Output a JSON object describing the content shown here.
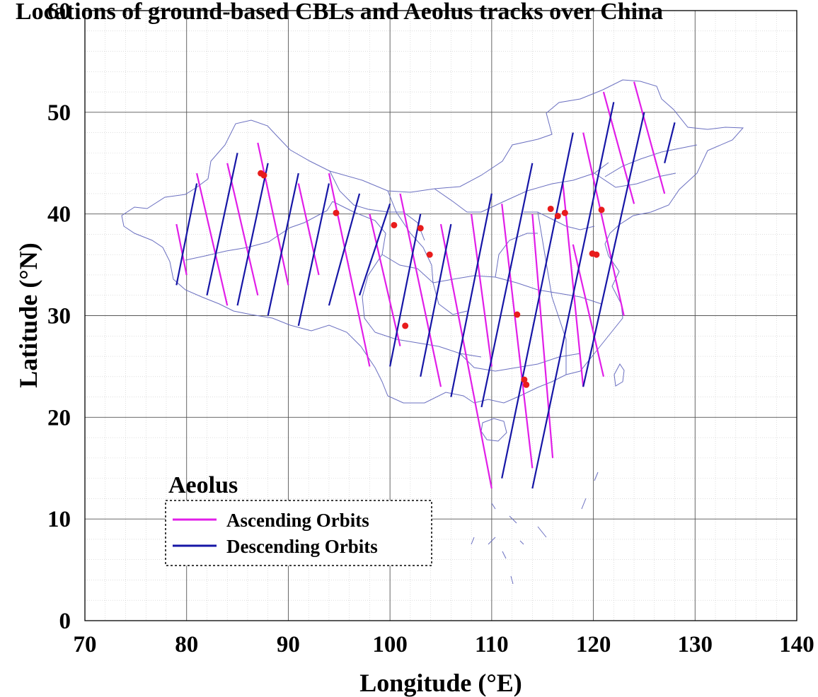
{
  "chart_data": {
    "type": "map",
    "title": "Locations of ground-based CBLs and Aeolus tracks over China",
    "xlabel": "Longitude (°E)",
    "ylabel": "Latitude (°N)",
    "xlim": [
      70,
      140
    ],
    "ylim": [
      0,
      60
    ],
    "x_ticks": [
      "70",
      "80",
      "90",
      "100",
      "110",
      "120",
      "130",
      "140"
    ],
    "y_ticks": [
      "0",
      "10",
      "20",
      "30",
      "40",
      "50",
      "60"
    ],
    "grid": true,
    "legend": {
      "title": "Aeolus",
      "placement": "bottom-left",
      "entries": [
        {
          "label": "Ascending Orbits",
          "color": "#e11ee8"
        },
        {
          "label": "Descending Orbits",
          "color": "#1616a6"
        }
      ]
    },
    "series": [
      {
        "name": "Ascending Orbits",
        "color": "#e11ee8",
        "segments": [
          [
            [
              79,
              39
            ],
            [
              80,
              34
            ]
          ],
          [
            [
              81,
              44
            ],
            [
              84,
              31
            ]
          ],
          [
            [
              84,
              45
            ],
            [
              87,
              32
            ]
          ],
          [
            [
              87,
              47
            ],
            [
              90,
              33
            ]
          ],
          [
            [
              91,
              43
            ],
            [
              93,
              34
            ]
          ],
          [
            [
              94,
              44
            ],
            [
              98,
              25
            ]
          ],
          [
            [
              98,
              40
            ],
            [
              101,
              27
            ]
          ],
          [
            [
              101,
              42
            ],
            [
              105,
              23
            ]
          ],
          [
            [
              105,
              39
            ],
            [
              110,
              13
            ]
          ],
          [
            [
              108,
              40
            ],
            [
              110,
              25
            ]
          ],
          [
            [
              111,
              41
            ],
            [
              114,
              15
            ]
          ],
          [
            [
              114,
              40
            ],
            [
              116,
              16
            ]
          ],
          [
            [
              117,
              43
            ],
            [
              119,
              23
            ]
          ],
          [
            [
              118,
              37
            ],
            [
              121,
              24
            ]
          ],
          [
            [
              119,
              48
            ],
            [
              123,
              30
            ]
          ],
          [
            [
              121,
              52
            ],
            [
              124,
              41
            ]
          ],
          [
            [
              124,
              53
            ],
            [
              127,
              42
            ]
          ]
        ]
      },
      {
        "name": "Descending Orbits",
        "color": "#1616a6",
        "segments": [
          [
            [
              79,
              33
            ],
            [
              81,
              43
            ]
          ],
          [
            [
              82,
              32
            ],
            [
              85,
              46
            ]
          ],
          [
            [
              85,
              31
            ],
            [
              88,
              45
            ]
          ],
          [
            [
              88,
              30
            ],
            [
              91,
              44
            ]
          ],
          [
            [
              91,
              29
            ],
            [
              94,
              43
            ]
          ],
          [
            [
              94,
              31
            ],
            [
              97,
              42
            ]
          ],
          [
            [
              97,
              32
            ],
            [
              100,
              41
            ]
          ],
          [
            [
              100,
              25
            ],
            [
              103,
              40
            ]
          ],
          [
            [
              103,
              24
            ],
            [
              106,
              39
            ]
          ],
          [
            [
              106,
              22
            ],
            [
              110,
              42
            ]
          ],
          [
            [
              109,
              21
            ],
            [
              114,
              45
            ]
          ],
          [
            [
              111,
              14
            ],
            [
              118,
              48
            ]
          ],
          [
            [
              114,
              13
            ],
            [
              122,
              51
            ]
          ],
          [
            [
              119,
              23
            ],
            [
              125,
              50
            ]
          ],
          [
            [
              127,
              45
            ],
            [
              128,
              49
            ]
          ]
        ]
      },
      {
        "name": "CBL sites",
        "color": "#e81c1c",
        "points": [
          [
            87.3,
            44.0
          ],
          [
            87.6,
            43.8
          ],
          [
            94.7,
            40.1
          ],
          [
            100.4,
            38.9
          ],
          [
            103.0,
            38.6
          ],
          [
            103.9,
            36.0
          ],
          [
            101.5,
            29.0
          ],
          [
            112.5,
            30.1
          ],
          [
            113.2,
            23.7
          ],
          [
            113.4,
            23.2
          ],
          [
            115.8,
            40.5
          ],
          [
            116.5,
            39.8
          ],
          [
            117.2,
            40.1
          ],
          [
            120.8,
            40.4
          ],
          [
            119.9,
            36.1
          ],
          [
            120.3,
            36.0
          ]
        ]
      }
    ]
  }
}
